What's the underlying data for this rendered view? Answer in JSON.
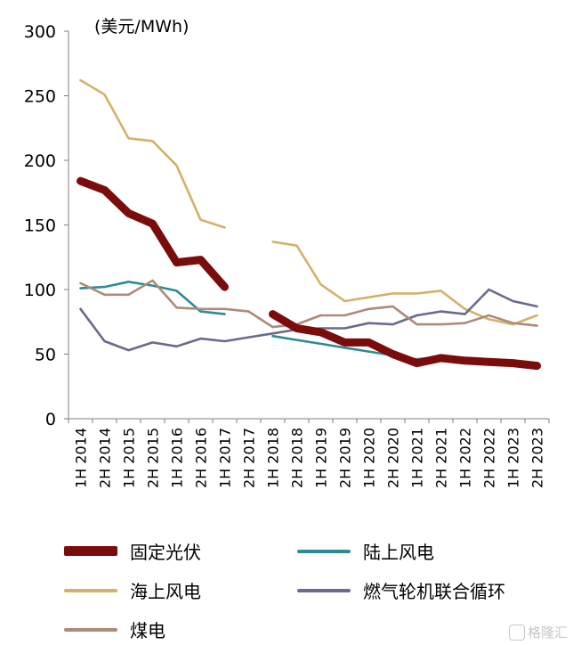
{
  "chart_data": {
    "type": "line",
    "ylabel": "(美元/MWh)",
    "ylim": [
      0,
      300
    ],
    "yticks": [
      "0",
      "50",
      "100",
      "150",
      "200",
      "250",
      "300"
    ],
    "categories": [
      "1H 2014",
      "2H 2014",
      "1H 2015",
      "2H 2015",
      "1H 2016",
      "2H 2016",
      "1H 2017",
      "2H 2017",
      "1H 2018",
      "2H 2018",
      "1H 2019",
      "2H 2019",
      "1H 2020",
      "2H 2020",
      "1H 2021",
      "2H 2021",
      "1H 2022",
      "2H 2022",
      "1H 2023",
      "2H 2023"
    ],
    "series": [
      {
        "name": "固定光伏",
        "color": "#7b0c0c",
        "values": [
          184,
          177,
          159,
          151,
          121,
          123,
          102,
          null,
          81,
          70,
          67,
          59,
          59,
          50,
          43,
          47,
          45,
          44,
          43,
          41
        ]
      },
      {
        "name": "陆上风电",
        "color": "#2e8a94",
        "values": [
          101,
          102,
          106,
          103,
          99,
          83,
          81,
          null,
          64,
          61,
          58,
          55,
          52,
          49,
          46,
          48,
          45,
          43,
          42,
          40
        ]
      },
      {
        "name": "海上风电",
        "color": "#d2b26a",
        "values": [
          262,
          251,
          217,
          215,
          196,
          154,
          148,
          null,
          137,
          134,
          104,
          91,
          94,
          97,
          97,
          99,
          85,
          77,
          73,
          80
        ]
      },
      {
        "name": "燃气轮机联合循环",
        "color": "#686b8c",
        "values": [
          85,
          60,
          53,
          59,
          56,
          62,
          60,
          63,
          66,
          69,
          70,
          70,
          74,
          73,
          80,
          83,
          81,
          100,
          91,
          87
        ]
      },
      {
        "name": "煤电",
        "color": "#ad8b7a",
        "values": [
          105,
          96,
          96,
          107,
          86,
          85,
          85,
          83,
          71,
          73,
          80,
          80,
          85,
          87,
          73,
          73,
          74,
          80,
          74,
          72
        ]
      }
    ]
  },
  "watermark": "格隆汇"
}
